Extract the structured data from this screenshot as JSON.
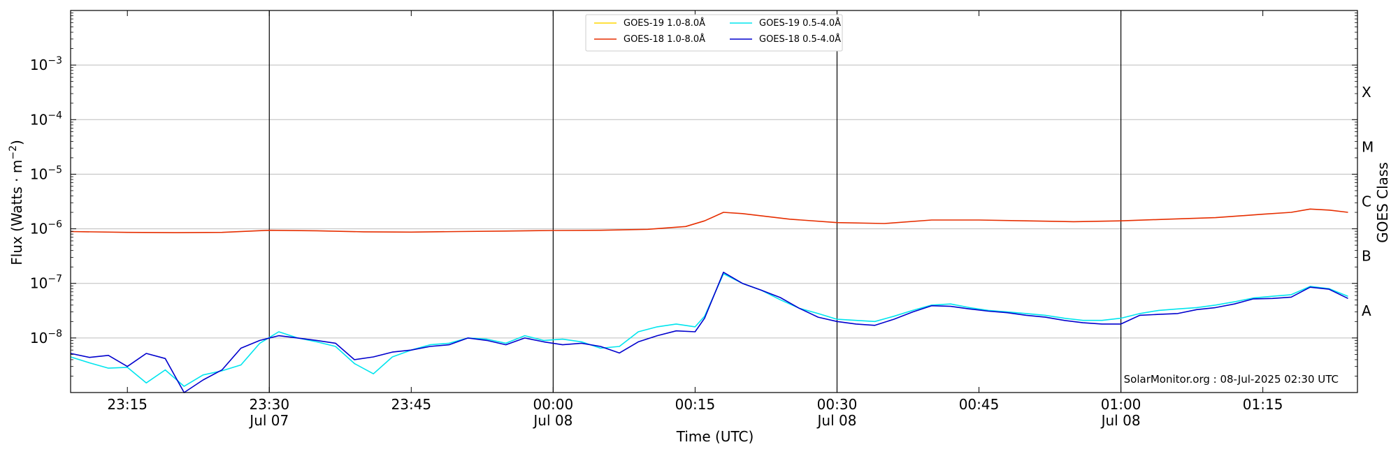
{
  "chart_data": {
    "type": "line",
    "xlabel": "Time (UTC)",
    "ylabel": "Flux (Watts · m",
    "ylabel_sup": "−2",
    "ylabel_close": ")",
    "ylabel_right": "GOES Class",
    "y_scale": "log",
    "ylim": [
      1e-09,
      0.01
    ],
    "xlim": [
      "2025-07-07 23:09",
      "2025-07-08 01:25"
    ],
    "grid": "horizontal",
    "y_ticks": [
      {
        "value": 1e-08,
        "base": "10",
        "exp": "−8"
      },
      {
        "value": 1e-07,
        "base": "10",
        "exp": "−7"
      },
      {
        "value": 1e-06,
        "base": "10",
        "exp": "−6"
      },
      {
        "value": 1e-05,
        "base": "10",
        "exp": "−5"
      },
      {
        "value": 0.0001,
        "base": "10",
        "exp": "−4"
      },
      {
        "value": 0.001,
        "base": "10",
        "exp": "−3"
      }
    ],
    "x_ticks": [
      {
        "time": "2025-07-07 23:15",
        "label": "23:15",
        "sub": ""
      },
      {
        "time": "2025-07-07 23:30",
        "label": "23:30",
        "sub": "Jul 07"
      },
      {
        "time": "2025-07-07 23:45",
        "label": "23:45",
        "sub": ""
      },
      {
        "time": "2025-07-08 00:00",
        "label": "00:00",
        "sub": "Jul 08"
      },
      {
        "time": "2025-07-08 00:15",
        "label": "00:15",
        "sub": ""
      },
      {
        "time": "2025-07-08 00:30",
        "label": "00:30",
        "sub": "Jul 08"
      },
      {
        "time": "2025-07-08 00:45",
        "label": "00:45",
        "sub": ""
      },
      {
        "time": "2025-07-08 01:00",
        "label": "01:00",
        "sub": "Jul 08"
      },
      {
        "time": "2025-07-08 01:15",
        "label": "01:15",
        "sub": ""
      }
    ],
    "vertical_lines": [
      "2025-07-07 23:30",
      "2025-07-08 00:00",
      "2025-07-08 00:30",
      "2025-07-08 01:00"
    ],
    "goes_classes": [
      {
        "label": "A",
        "flux": 3.16e-08
      },
      {
        "label": "B",
        "flux": 3.16e-07
      },
      {
        "label": "C",
        "flux": 3.16e-06
      },
      {
        "label": "M",
        "flux": 3.16e-05
      },
      {
        "label": "X",
        "flux": 0.000316
      }
    ],
    "legend_position": "top-center",
    "credit": "SolarMonitor.org : 08-Jul-2025 02:30 UTC",
    "series": [
      {
        "name": "GOES-19 1.0-8.0Å",
        "color": "#ffd700",
        "x": [],
        "y": []
      },
      {
        "name": "GOES-18 1.0-8.0Å",
        "color": "#e62e00",
        "x": [
          "2025-07-07 23:09",
          "2025-07-07 23:15",
          "2025-07-07 23:20",
          "2025-07-07 23:25",
          "2025-07-07 23:30",
          "2025-07-07 23:35",
          "2025-07-07 23:40",
          "2025-07-07 23:45",
          "2025-07-07 23:50",
          "2025-07-07 23:55",
          "2025-07-08 00:00",
          "2025-07-08 00:05",
          "2025-07-08 00:10",
          "2025-07-08 00:14",
          "2025-07-08 00:16",
          "2025-07-08 00:18",
          "2025-07-08 00:20",
          "2025-07-08 00:25",
          "2025-07-08 00:30",
          "2025-07-08 00:35",
          "2025-07-08 00:40",
          "2025-07-08 00:45",
          "2025-07-08 00:50",
          "2025-07-08 00:55",
          "2025-07-08 01:00",
          "2025-07-08 01:05",
          "2025-07-08 01:10",
          "2025-07-08 01:15",
          "2025-07-08 01:18",
          "2025-07-08 01:20",
          "2025-07-08 01:22",
          "2025-07-08 01:24"
        ],
        "y": [
          8.9e-07,
          8.6e-07,
          8.5e-07,
          8.6e-07,
          9.4e-07,
          9.2e-07,
          8.8e-07,
          8.7e-07,
          8.9e-07,
          9.1e-07,
          9.3e-07,
          9.4e-07,
          9.8e-07,
          1.1e-06,
          1.4e-06,
          2e-06,
          1.9e-06,
          1.5e-06,
          1.3e-06,
          1.25e-06,
          1.45e-06,
          1.45e-06,
          1.4e-06,
          1.35e-06,
          1.4e-06,
          1.5e-06,
          1.6e-06,
          1.85e-06,
          2e-06,
          2.3e-06,
          2.2e-06,
          2e-06
        ]
      },
      {
        "name": "GOES-19 0.5-4.0Å",
        "color": "#00e5ee",
        "x": [
          "2025-07-07 23:09",
          "2025-07-07 23:11",
          "2025-07-07 23:13",
          "2025-07-07 23:15",
          "2025-07-07 23:17",
          "2025-07-07 23:19",
          "2025-07-07 23:21",
          "2025-07-07 23:23",
          "2025-07-07 23:25",
          "2025-07-07 23:27",
          "2025-07-07 23:29",
          "2025-07-07 23:31",
          "2025-07-07 23:33",
          "2025-07-07 23:35",
          "2025-07-07 23:37",
          "2025-07-07 23:39",
          "2025-07-07 23:41",
          "2025-07-07 23:43",
          "2025-07-07 23:45",
          "2025-07-07 23:47",
          "2025-07-07 23:49",
          "2025-07-07 23:51",
          "2025-07-07 23:53",
          "2025-07-07 23:55",
          "2025-07-07 23:57",
          "2025-07-07 23:59",
          "2025-07-08 00:01",
          "2025-07-08 00:03",
          "2025-07-08 00:05",
          "2025-07-08 00:07",
          "2025-07-08 00:09",
          "2025-07-08 00:11",
          "2025-07-08 00:13",
          "2025-07-08 00:15",
          "2025-07-08 00:16",
          "2025-07-08 00:18",
          "2025-07-08 00:20",
          "2025-07-08 00:22",
          "2025-07-08 00:24",
          "2025-07-08 00:26",
          "2025-07-08 00:28",
          "2025-07-08 00:30",
          "2025-07-08 00:32",
          "2025-07-08 00:34",
          "2025-07-08 00:36",
          "2025-07-08 00:38",
          "2025-07-08 00:40",
          "2025-07-08 00:42",
          "2025-07-08 00:44",
          "2025-07-08 00:46",
          "2025-07-08 00:48",
          "2025-07-08 00:50",
          "2025-07-08 00:52",
          "2025-07-08 00:54",
          "2025-07-08 00:56",
          "2025-07-08 00:58",
          "2025-07-08 01:00",
          "2025-07-08 01:02",
          "2025-07-08 01:04",
          "2025-07-08 01:06",
          "2025-07-08 01:08",
          "2025-07-08 01:10",
          "2025-07-08 01:12",
          "2025-07-08 01:14",
          "2025-07-08 01:16",
          "2025-07-08 01:18",
          "2025-07-08 01:20",
          "2025-07-08 01:22",
          "2025-07-08 01:24"
        ],
        "y": [
          4.5e-09,
          3.5e-09,
          2.8e-09,
          2.9e-09,
          1.5e-09,
          2.6e-09,
          1.3e-09,
          2.1e-09,
          2.5e-09,
          3.2e-09,
          8e-09,
          1.3e-08,
          1e-08,
          8.5e-09,
          7e-09,
          3.4e-09,
          2.2e-09,
          4.5e-09,
          6e-09,
          7.5e-09,
          8e-09,
          1e-08,
          9.5e-09,
          8e-09,
          1.1e-08,
          9e-09,
          9.5e-09,
          8.5e-09,
          6.5e-09,
          7e-09,
          1.3e-08,
          1.6e-08,
          1.8e-08,
          1.6e-08,
          2.5e-08,
          1.5e-07,
          1e-07,
          7.5e-08,
          5e-08,
          3.5e-08,
          2.8e-08,
          2.2e-08,
          2.1e-08,
          2e-08,
          2.5e-08,
          3.2e-08,
          4e-08,
          4.2e-08,
          3.6e-08,
          3.2e-08,
          3e-08,
          2.8e-08,
          2.6e-08,
          2.3e-08,
          2.1e-08,
          2.1e-08,
          2.3e-08,
          2.8e-08,
          3.2e-08,
          3.4e-08,
          3.6e-08,
          4e-08,
          4.6e-08,
          5.4e-08,
          5.8e-08,
          6.2e-08,
          8.8e-08,
          8e-08,
          5.8e-08
        ]
      },
      {
        "name": "GOES-18 0.5-4.0Å",
        "color": "#0000cd",
        "x": [
          "2025-07-07 23:09",
          "2025-07-07 23:11",
          "2025-07-07 23:13",
          "2025-07-07 23:15",
          "2025-07-07 23:17",
          "2025-07-07 23:19",
          "2025-07-07 23:21",
          "2025-07-07 23:23",
          "2025-07-07 23:25",
          "2025-07-07 23:27",
          "2025-07-07 23:29",
          "2025-07-07 23:31",
          "2025-07-07 23:33",
          "2025-07-07 23:35",
          "2025-07-07 23:37",
          "2025-07-07 23:39",
          "2025-07-07 23:41",
          "2025-07-07 23:43",
          "2025-07-07 23:45",
          "2025-07-07 23:47",
          "2025-07-07 23:49",
          "2025-07-07 23:51",
          "2025-07-07 23:53",
          "2025-07-07 23:55",
          "2025-07-07 23:57",
          "2025-07-07 23:59",
          "2025-07-08 00:01",
          "2025-07-08 00:03",
          "2025-07-08 00:05",
          "2025-07-08 00:07",
          "2025-07-08 00:09",
          "2025-07-08 00:11",
          "2025-07-08 00:13",
          "2025-07-08 00:15",
          "2025-07-08 00:16",
          "2025-07-08 00:18",
          "2025-07-08 00:20",
          "2025-07-08 00:22",
          "2025-07-08 00:24",
          "2025-07-08 00:26",
          "2025-07-08 00:28",
          "2025-07-08 00:30",
          "2025-07-08 00:32",
          "2025-07-08 00:34",
          "2025-07-08 00:36",
          "2025-07-08 00:38",
          "2025-07-08 00:40",
          "2025-07-08 00:42",
          "2025-07-08 00:44",
          "2025-07-08 00:46",
          "2025-07-08 00:48",
          "2025-07-08 00:50",
          "2025-07-08 00:52",
          "2025-07-08 00:54",
          "2025-07-08 00:56",
          "2025-07-08 00:58",
          "2025-07-08 01:00",
          "2025-07-08 01:02",
          "2025-07-08 01:04",
          "2025-07-08 01:06",
          "2025-07-08 01:08",
          "2025-07-08 01:10",
          "2025-07-08 01:12",
          "2025-07-08 01:14",
          "2025-07-08 01:16",
          "2025-07-08 01:18",
          "2025-07-08 01:20",
          "2025-07-08 01:22",
          "2025-07-08 01:24"
        ],
        "y": [
          5.2e-09,
          4.4e-09,
          4.8e-09,
          3e-09,
          5.2e-09,
          4.2e-09,
          1e-09,
          1.7e-09,
          2.6e-09,
          6.5e-09,
          9e-09,
          1.1e-08,
          1e-08,
          9e-09,
          8e-09,
          4e-09,
          4.5e-09,
          5.5e-09,
          6e-09,
          7e-09,
          7.5e-09,
          1e-08,
          9e-09,
          7.5e-09,
          1e-08,
          8.5e-09,
          7.5e-09,
          8e-09,
          7e-09,
          5.3e-09,
          8.5e-09,
          1.1e-08,
          1.35e-08,
          1.3e-08,
          2.3e-08,
          1.6e-07,
          1e-07,
          7.5e-08,
          5.5e-08,
          3.5e-08,
          2.4e-08,
          2e-08,
          1.8e-08,
          1.7e-08,
          2.2e-08,
          3e-08,
          3.9e-08,
          3.8e-08,
          3.4e-08,
          3.1e-08,
          2.9e-08,
          2.6e-08,
          2.4e-08,
          2.1e-08,
          1.9e-08,
          1.8e-08,
          1.8e-08,
          2.6e-08,
          2.7e-08,
          2.8e-08,
          3.3e-08,
          3.6e-08,
          4.2e-08,
          5.2e-08,
          5.3e-08,
          5.6e-08,
          8.5e-08,
          7.8e-08,
          5.3e-08
        ]
      }
    ]
  }
}
